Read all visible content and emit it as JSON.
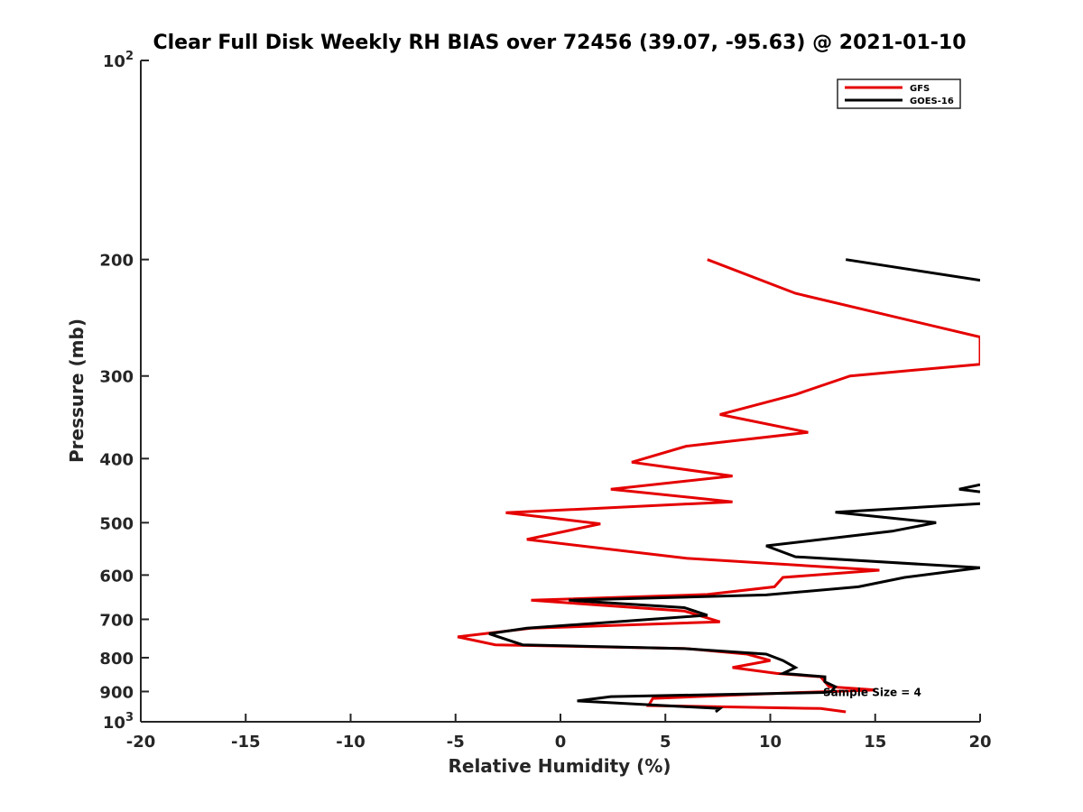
{
  "chart_data": {
    "type": "line",
    "title": "Clear Full Disk Weekly RH BIAS over 72456 (39.07, -95.63) @ 2021-01-10",
    "xlabel": "Relative Humidity (%)",
    "ylabel": "Pressure (mb)",
    "xlim": [
      -20,
      20
    ],
    "ylim": [
      100,
      1000
    ],
    "yscale": "log",
    "y_reversed": true,
    "x_ticks": [
      "-20",
      "-15",
      "-10",
      "-5",
      "0",
      "5",
      "10",
      "15",
      "20"
    ],
    "y_ticks": [
      {
        "value": 100,
        "base": "10",
        "exp": "2"
      },
      {
        "value": 200,
        "label": "200"
      },
      {
        "value": 300,
        "label": "300"
      },
      {
        "value": 400,
        "label": "400"
      },
      {
        "value": 500,
        "label": "500"
      },
      {
        "value": 600,
        "label": "600"
      },
      {
        "value": 700,
        "label": "700"
      },
      {
        "value": 800,
        "label": "800"
      },
      {
        "value": 900,
        "label": "900"
      },
      {
        "value": 1000,
        "base": "10",
        "exp": "3"
      }
    ],
    "legend_position": "top-right",
    "series": [
      {
        "name": "GFS",
        "color": "#e50000",
        "points": [
          [
            7.0,
            200
          ],
          [
            11.2,
            225
          ],
          [
            20.0,
            262
          ],
          [
            20.0,
            288
          ],
          [
            13.8,
            300
          ],
          [
            11.2,
            320
          ],
          [
            7.6,
            343
          ],
          [
            11.8,
            365
          ],
          [
            6.0,
            383
          ],
          [
            3.4,
            405
          ],
          [
            8.2,
            425
          ],
          [
            2.4,
            445
          ],
          [
            8.2,
            465
          ],
          [
            -2.6,
            483
          ],
          [
            1.9,
            502
          ],
          [
            -1.6,
            530
          ],
          [
            6.0,
            566
          ],
          [
            15.2,
            590
          ],
          [
            10.6,
            605
          ],
          [
            10.2,
            625
          ],
          [
            7.0,
            642
          ],
          [
            -1.4,
            655
          ],
          [
            5.9,
            680
          ],
          [
            7.6,
            706
          ],
          [
            -1.4,
            722
          ],
          [
            -4.9,
            744
          ],
          [
            -3.1,
            765
          ],
          [
            6.0,
            775
          ],
          [
            8.9,
            790
          ],
          [
            10.0,
            808
          ],
          [
            8.2,
            828
          ],
          [
            10.3,
            845
          ],
          [
            12.4,
            855
          ],
          [
            12.6,
            870
          ],
          [
            12.8,
            885
          ],
          [
            15.0,
            895
          ],
          [
            10.6,
            905
          ],
          [
            4.4,
            922
          ],
          [
            4.2,
            945
          ],
          [
            12.4,
            955
          ],
          [
            13.6,
            966
          ]
        ]
      },
      {
        "name": "GOES-16",
        "color": "#000000",
        "segments": [
          [
            [
              13.6,
              200
            ],
            [
              20.0,
              215
            ]
          ],
          [
            [
              20.0,
              438
            ],
            [
              19.0,
              445
            ],
            [
              20.0,
              449
            ]
          ],
          [
            [
              20.0,
              468
            ],
            [
              13.1,
              482
            ],
            [
              17.9,
              500
            ],
            [
              15.8,
              515
            ],
            [
              9.8,
              542
            ],
            [
              11.2,
              563
            ],
            [
              20.0,
              585
            ],
            [
              16.4,
              605
            ],
            [
              14.2,
              625
            ],
            [
              9.8,
              643
            ],
            [
              0.4,
              655
            ],
            [
              5.9,
              672
            ],
            [
              7.0,
              690
            ],
            [
              -1.6,
              722
            ],
            [
              -3.4,
              736
            ],
            [
              -1.8,
              765
            ],
            [
              5.9,
              775
            ],
            [
              9.8,
              790
            ],
            [
              10.6,
              808
            ],
            [
              11.2,
              828
            ],
            [
              10.6,
              845
            ],
            [
              12.6,
              855
            ],
            [
              12.6,
              870
            ],
            [
              13.1,
              885
            ],
            [
              12.9,
              900
            ],
            [
              12.6,
              903
            ],
            [
              2.4,
              916
            ],
            [
              0.8,
              930
            ],
            [
              7.6,
              955
            ],
            [
              7.4,
              966
            ]
          ]
        ]
      }
    ],
    "annotations": [
      {
        "text": "Sample Size = 4",
        "x": 12.6,
        "y": 900
      }
    ]
  }
}
